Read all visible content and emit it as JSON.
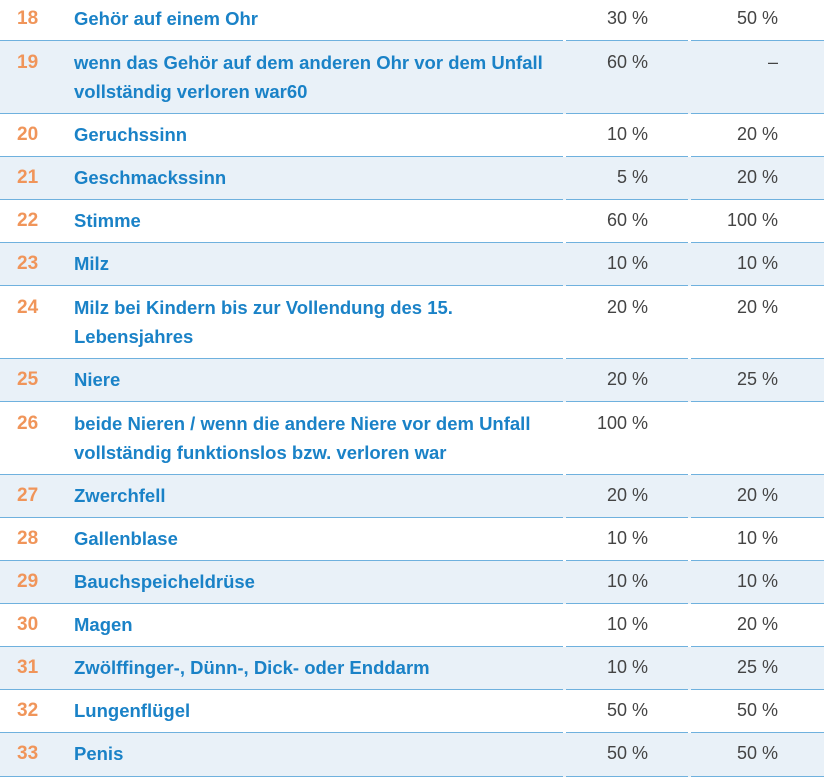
{
  "rows": [
    {
      "num": "18",
      "label": "Gehör auf einem Ohr",
      "v1": "30 %",
      "v2": "50 %"
    },
    {
      "num": "19",
      "label": "wenn das Gehör auf dem anderen Ohr vor dem Unfall vollständig verloren war60",
      "v1": "60 %",
      "v2": "–"
    },
    {
      "num": "20",
      "label": "Geruchssinn",
      "v1": "10 %",
      "v2": "20 %"
    },
    {
      "num": "21",
      "label": "Geschmackssinn",
      "v1": "5 %",
      "v2": "20 %"
    },
    {
      "num": "22",
      "label": "Stimme",
      "v1": "60 %",
      "v2": "100 %"
    },
    {
      "num": "23",
      "label": "Milz",
      "v1": "10 %",
      "v2": "10 %"
    },
    {
      "num": "24",
      "label": "Milz bei Kindern bis zur Vollendung des 15. Lebensjahres",
      "v1": "20 %",
      "v2": "20 %"
    },
    {
      "num": "25",
      "label": "Niere",
      "v1": "20 %",
      "v2": "25 %"
    },
    {
      "num": "26",
      "label": "beide Nieren / wenn die andere Niere vor dem Unfall vollständig funktionslos bzw. verloren war",
      "v1": "100 %",
      "v2": ""
    },
    {
      "num": "27",
      "label": "Zwerchfell",
      "v1": "20 %",
      "v2": "20 %"
    },
    {
      "num": "28",
      "label": "Gallenblase",
      "v1": "10 %",
      "v2": "10 %"
    },
    {
      "num": "29",
      "label": "Bauchspeicheldrüse",
      "v1": "10 %",
      "v2": "10 %"
    },
    {
      "num": "30",
      "label": "Magen",
      "v1": "10 %",
      "v2": "20 %"
    },
    {
      "num": "31",
      "label": "Zwölffinger-, Dünn-, Dick- oder Enddarm",
      "v1": "10 %",
      "v2": "25 %"
    },
    {
      "num": "32",
      "label": "Lungenflügel",
      "v1": "50 %",
      "v2": "50 %"
    },
    {
      "num": "33",
      "label": "Penis",
      "v1": "50 %",
      "v2": "50 %"
    }
  ],
  "colors": {
    "number": "#f0955a",
    "label": "#1a82c7",
    "value": "#444444",
    "shaded_row": "#e9f1f8",
    "rule": "#6fb1de"
  }
}
